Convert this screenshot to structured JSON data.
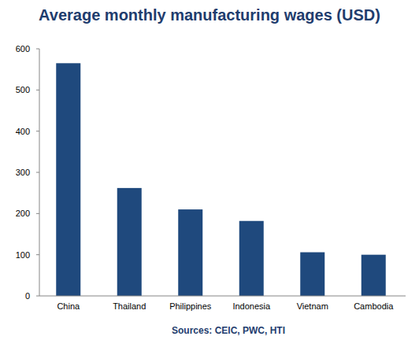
{
  "chart_data": {
    "type": "bar",
    "title": "Average monthly manufacturing wages (USD)",
    "source": "Sources: CEIC, PWC, HTI",
    "categories": [
      "China",
      "Thailand",
      "Philippines",
      "Indonesia",
      "Vietnam",
      "Cambodia"
    ],
    "values": [
      565,
      262,
      210,
      182,
      106,
      100
    ],
    "color": "#1f497d",
    "ylim": [
      0,
      600
    ],
    "yticks": [
      0,
      100,
      200,
      300,
      400,
      500,
      600
    ],
    "grid": false
  }
}
